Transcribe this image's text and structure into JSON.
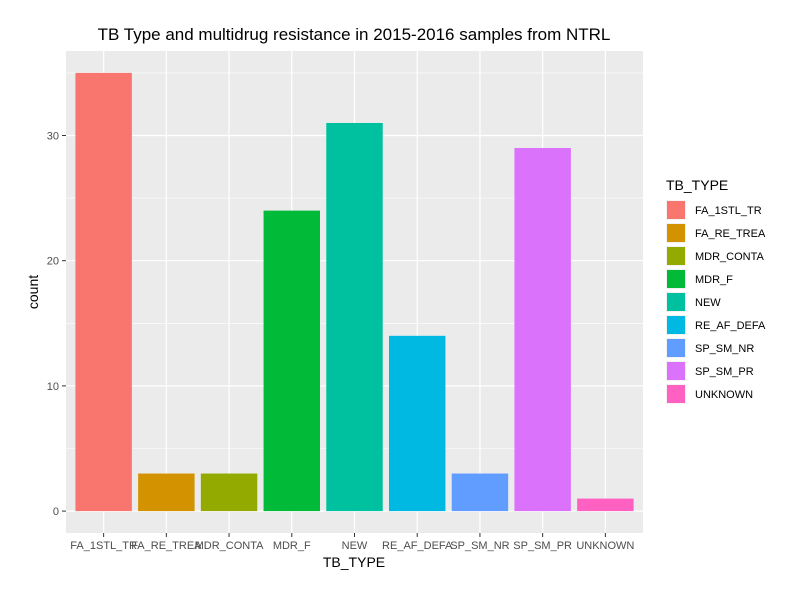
{
  "chart_data": {
    "type": "bar",
    "title": "TB Type and multidrug resistance in 2015-2016 samples from NTRL",
    "xlabel": "TB_TYPE",
    "ylabel": "count",
    "categories": [
      "FA_1STL_TR",
      "FA_RE_TREA",
      "MDR_CONTA",
      "MDR_F",
      "NEW",
      "RE_AF_DEFA",
      "SP_SM_NR",
      "SP_SM_PR",
      "UNKNOWN"
    ],
    "values": [
      35,
      3,
      3,
      24,
      31,
      14,
      3,
      29,
      1
    ],
    "colors": [
      "#F8766D",
      "#D39200",
      "#93AA00",
      "#00BA38",
      "#00C19F",
      "#00B9E3",
      "#619CFF",
      "#DB72FB",
      "#FF61C3"
    ],
    "yticks": [
      0,
      10,
      20,
      30
    ],
    "ylim": [
      -1.75,
      36.75
    ],
    "grid": true,
    "background": "#EBEBEB",
    "legend": {
      "title": "TB_TYPE",
      "position": "right",
      "entries": [
        "FA_1STL_TR",
        "FA_RE_TREA",
        "MDR_CONTA",
        "MDR_F",
        "NEW",
        "RE_AF_DEFA",
        "SP_SM_NR",
        "SP_SM_PR",
        "UNKNOWN"
      ]
    }
  }
}
